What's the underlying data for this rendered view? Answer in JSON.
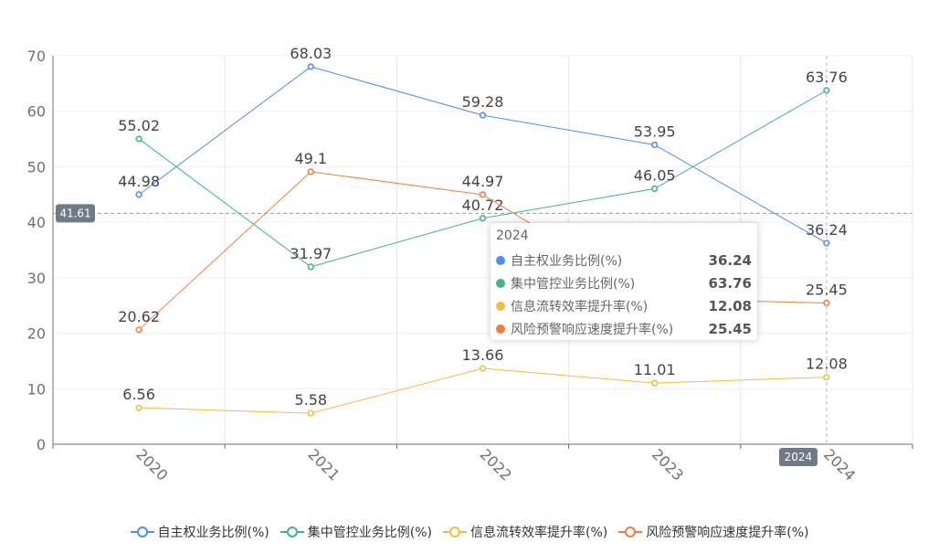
{
  "chart_data": {
    "type": "line",
    "categories": [
      "2020",
      "2021",
      "2022",
      "2023",
      "2024"
    ],
    "ylim": [
      0,
      70
    ],
    "yticks": [
      "0",
      "10",
      "20",
      "30",
      "40",
      "50",
      "60",
      "70"
    ],
    "grid": true,
    "legend_position": "bottom",
    "series": [
      {
        "name": "自主权业务比例(%)",
        "color": "#4e8cf7",
        "values": [
          44.98,
          68.03,
          59.28,
          53.95,
          36.24
        ],
        "labels": [
          "44.98",
          "68.03",
          "59.28",
          "53.95",
          "36.24"
        ]
      },
      {
        "name": "集中管控业务比例(%)",
        "color": "#3cb68a",
        "values": [
          55.02,
          31.97,
          40.72,
          46.05,
          63.76
        ],
        "labels": [
          "55.02",
          "31.97",
          "40.72",
          "46.05",
          "63.76"
        ]
      },
      {
        "name": "信息流转效率提升率(%)",
        "color": "#f5bd3c",
        "values": [
          6.56,
          5.58,
          13.66,
          11.01,
          12.08
        ],
        "labels": [
          "6.56",
          "5.58",
          "13.66",
          "11.01",
          "12.08"
        ]
      },
      {
        "name": "风险预警响应速度提升率(%)",
        "color": "#f47c3c",
        "values": [
          20.62,
          49.1,
          44.97,
          26.2,
          25.45
        ],
        "labels": [
          "20.62",
          "49.1",
          "44.97",
          "",
          "25.45"
        ]
      }
    ],
    "axis_pointer": {
      "y_label": "41.61",
      "y_value": 41.61,
      "x_label": "2024"
    }
  },
  "tooltip": {
    "title": "2024",
    "rows": [
      {
        "name": "自主权业务比例(%)",
        "value": "36.24",
        "color": "#4e8cf7"
      },
      {
        "name": "集中管控业务比例(%)",
        "value": "63.76",
        "color": "#3cb68a"
      },
      {
        "name": "信息流转效率提升率(%)",
        "value": "12.08",
        "color": "#f5bd3c"
      },
      {
        "name": "风险预警响应速度提升率(%)",
        "value": "25.45",
        "color": "#f47c3c"
      }
    ]
  }
}
